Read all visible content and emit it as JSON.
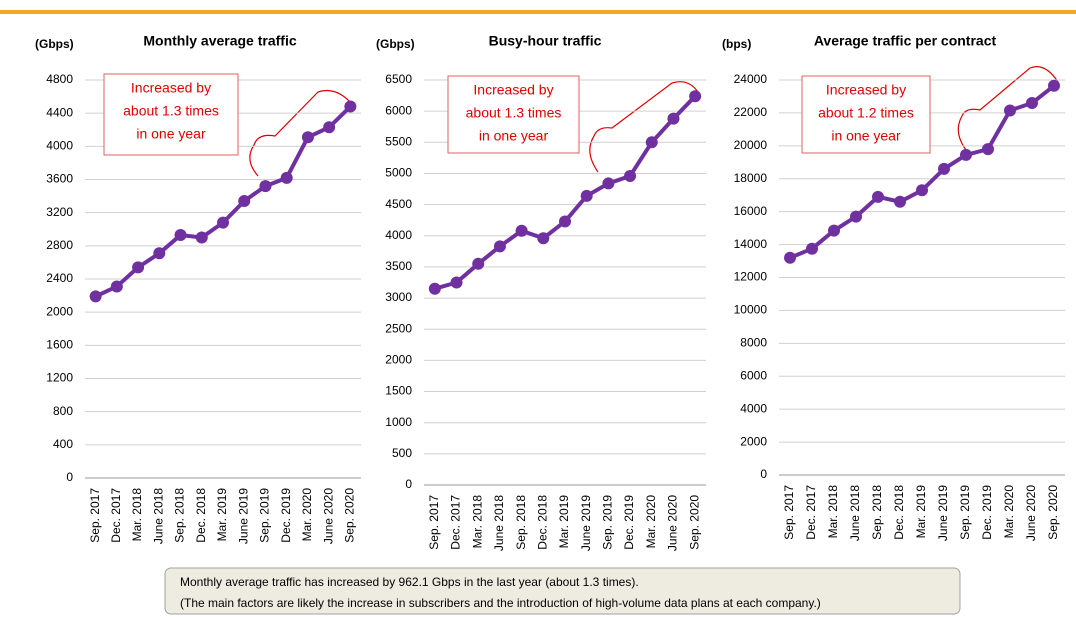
{
  "chart_data": [
    {
      "type": "line",
      "title": "Monthly average traffic",
      "y_label": "(Gbps)",
      "categories": [
        "Sep. 2017",
        "Dec. 2017",
        "Mar. 2018",
        "June 2018",
        "Sep. 2018",
        "Dec. 2018",
        "Mar. 2019",
        "June 2019",
        "Sep. 2019",
        "Dec. 2019",
        "Mar. 2020",
        "June 2020",
        "Sep. 2020"
      ],
      "series": [
        {
          "name": "Monthly average traffic",
          "color": "#7030a0",
          "values": [
            2190,
            2310,
            2540,
            2710,
            2930,
            2900,
            3080,
            3340,
            3520,
            3620,
            4110,
            4230,
            4480
          ]
        }
      ],
      "ylim": [
        0,
        4800
      ],
      "yticks": [
        0,
        400,
        800,
        1200,
        1600,
        2000,
        2400,
        2800,
        3200,
        3600,
        4000,
        4400,
        4800
      ],
      "grid": true,
      "annotation": [
        "Increased by",
        "about 1.3 times",
        "in one year"
      ]
    },
    {
      "type": "line",
      "title": "Busy-hour traffic",
      "y_label": "(Gbps)",
      "categories": [
        "Sep. 2017",
        "Dec. 2017",
        "Mar. 2018",
        "June 2018",
        "Sep. 2018",
        "Dec. 2018",
        "Mar. 2019",
        "June 2019",
        "Sep. 2019",
        "Dec. 2019",
        "Mar. 2020",
        "June 2020",
        "Sep. 2020"
      ],
      "series": [
        {
          "name": "Busy-hour traffic",
          "color": "#7030a0",
          "values": [
            3150,
            3250,
            3550,
            3830,
            4080,
            3960,
            4230,
            4640,
            4840,
            4960,
            5500,
            5880,
            6240
          ]
        }
      ],
      "ylim": [
        0,
        6500
      ],
      "yticks": [
        0,
        500,
        1000,
        1500,
        2000,
        2500,
        3000,
        3500,
        4000,
        4500,
        5000,
        5500,
        6000,
        6500
      ],
      "grid": true,
      "annotation": [
        "Increased by",
        "about 1.3 times",
        "in one year"
      ]
    },
    {
      "type": "line",
      "title": "Average traffic per contract",
      "y_label": "(bps)",
      "categories": [
        "Sep. 2017",
        "Dec. 2017",
        "Mar. 2018",
        "June 2018",
        "Sep. 2018",
        "Dec. 2018",
        "Mar. 2019",
        "June 2019",
        "Sep. 2019",
        "Dec. 2019",
        "Mar. 2020",
        "June 2020",
        "Sep. 2020"
      ],
      "series": [
        {
          "name": "Average traffic per contract",
          "color": "#7030a0",
          "values": [
            13200,
            13750,
            14850,
            15700,
            16900,
            16600,
            17300,
            18600,
            19450,
            19800,
            22150,
            22600,
            23650
          ]
        }
      ],
      "ylim": [
        0,
        24000
      ],
      "yticks": [
        0,
        2000,
        4000,
        6000,
        8000,
        10000,
        12000,
        14000,
        16000,
        18000,
        20000,
        22000,
        24000
      ],
      "grid": true,
      "annotation": [
        "Increased by",
        "about 1.2 times",
        "in one year"
      ]
    }
  ],
  "note": [
    "Monthly average traffic has increased by 962.1 Gbps in the last year (about 1.3 times).",
    "(The main factors are likely the increase in subscribers and the introduction of high-volume data plans at each company.)"
  ]
}
